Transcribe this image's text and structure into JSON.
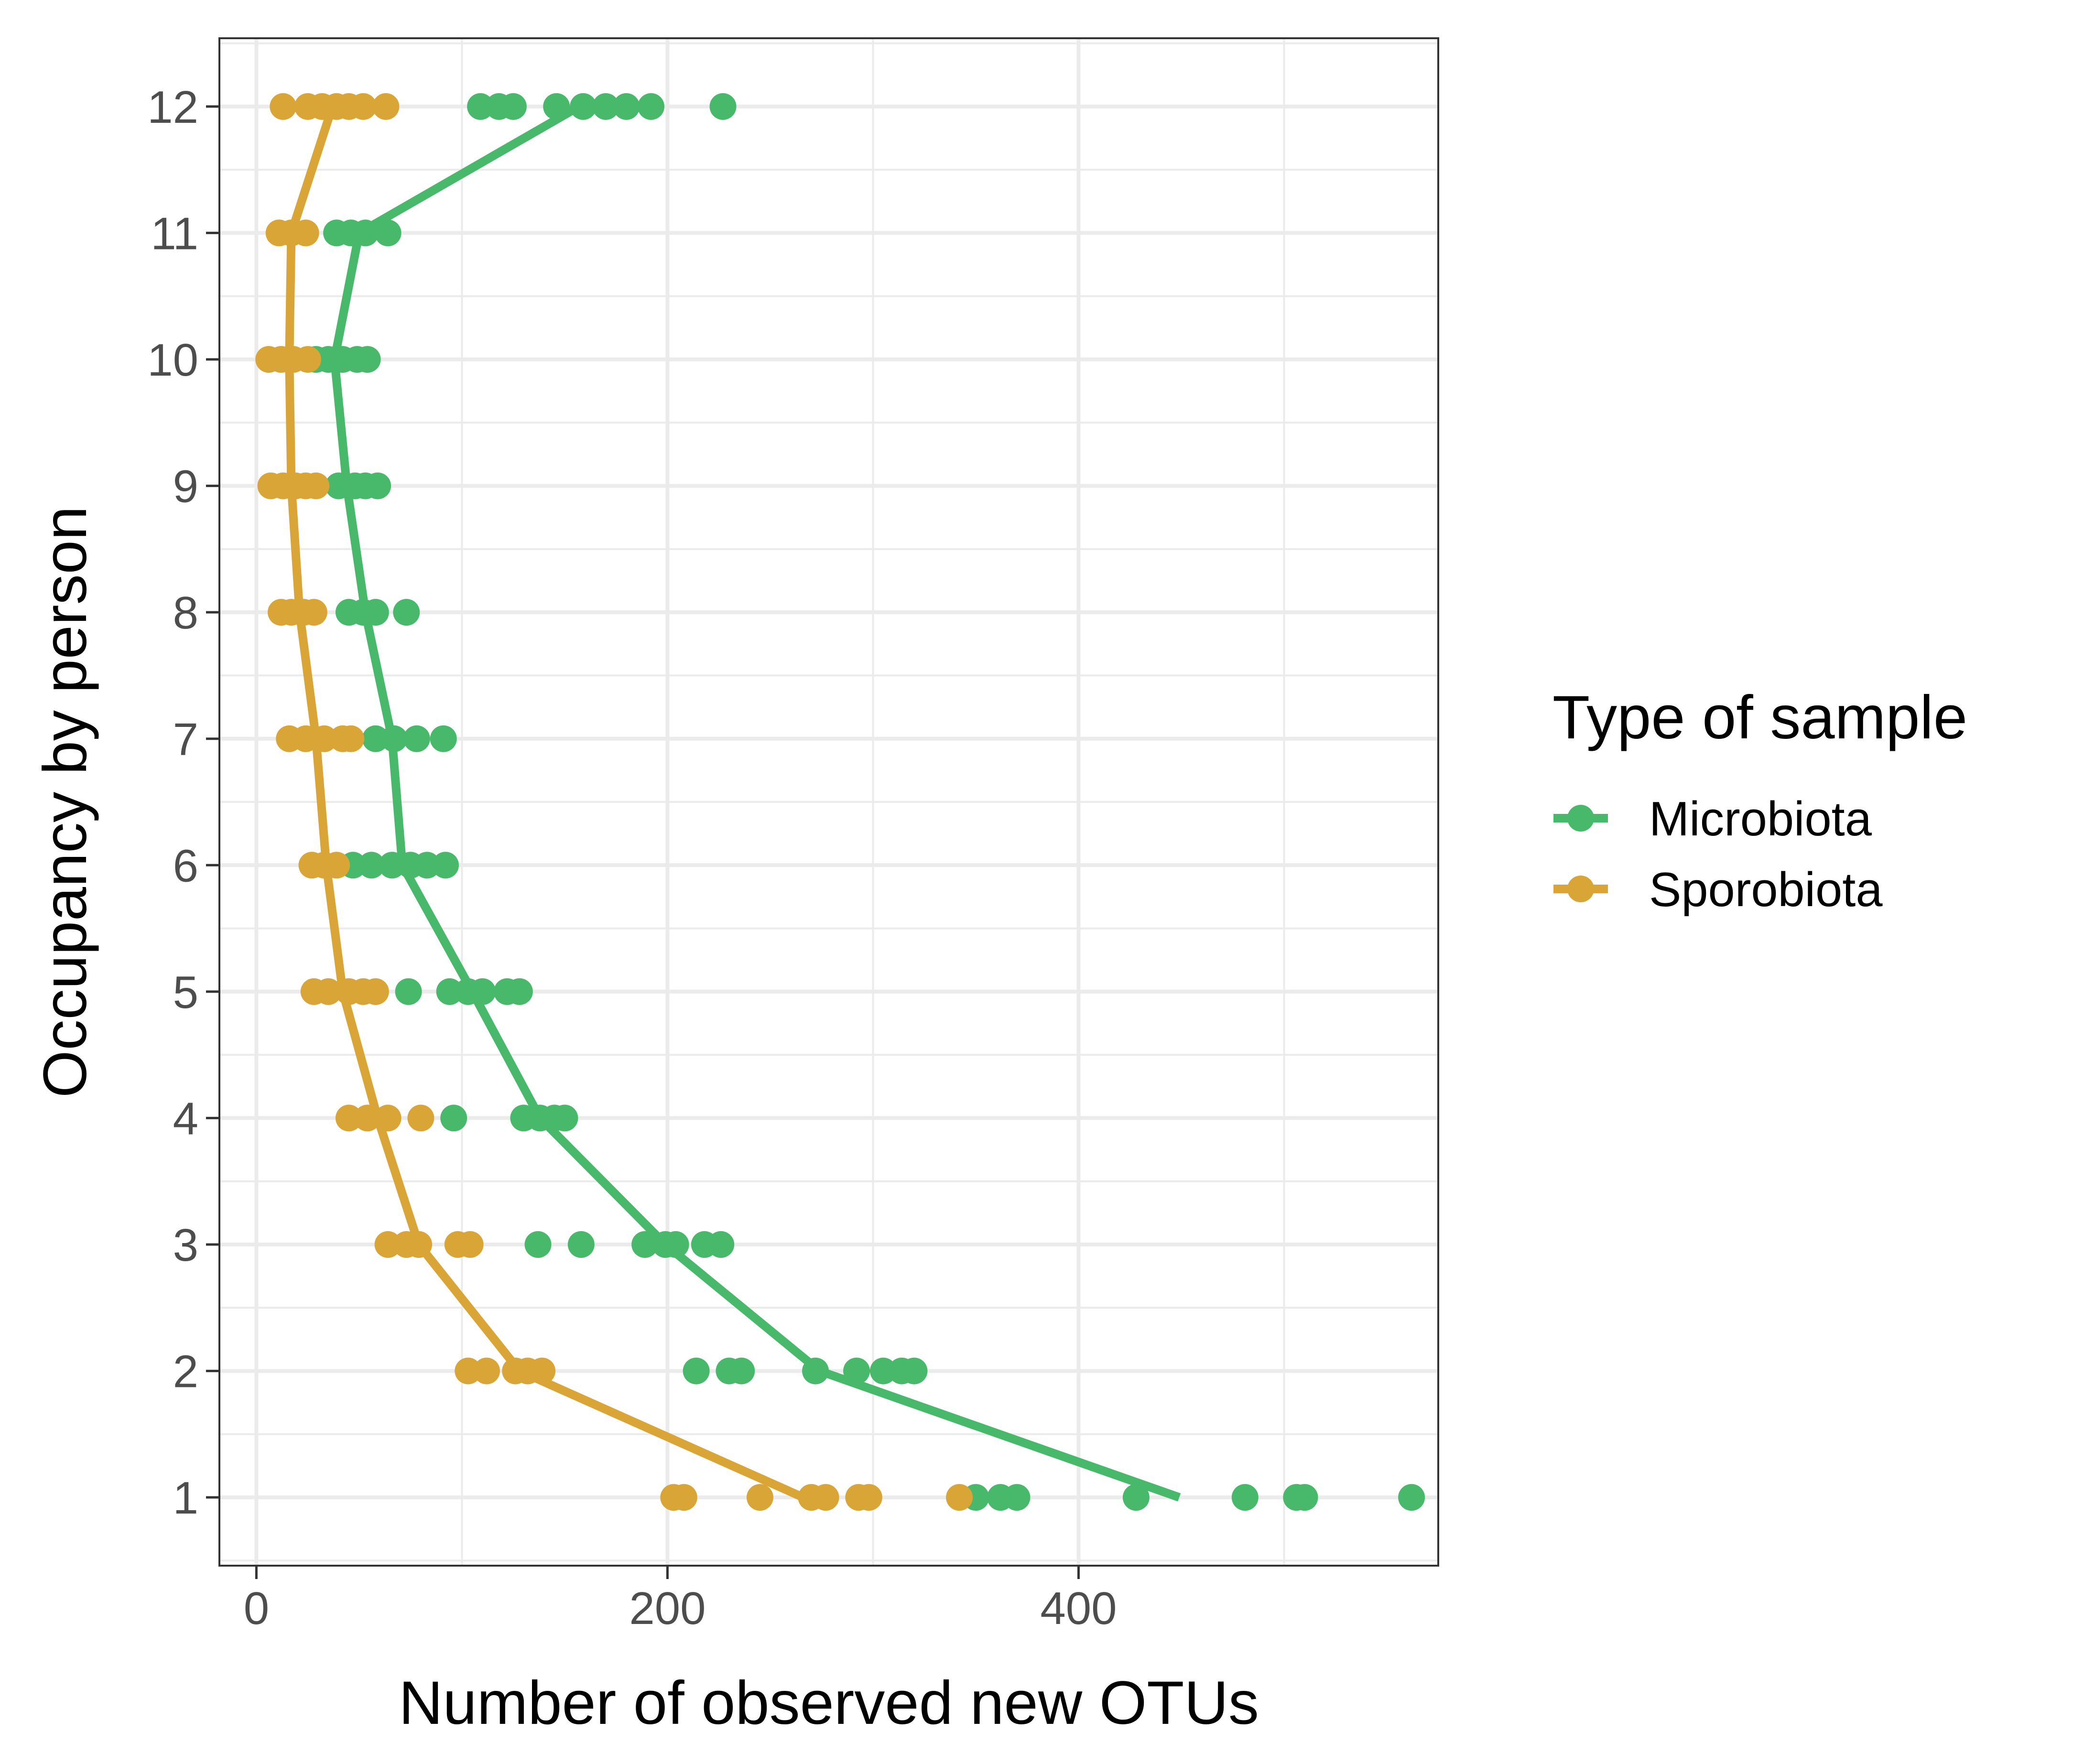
{
  "chart_data": {
    "type": "scatter",
    "xlabel": "Number of observed new OTUs",
    "ylabel": "Occupancy by person",
    "xlim": [
      -18,
      575
    ],
    "ylim": [
      0.46,
      12.54
    ],
    "x_ticks": [
      0,
      200,
      400
    ],
    "y_ticks": [
      1,
      2,
      3,
      4,
      5,
      6,
      7,
      8,
      9,
      10,
      11,
      12
    ],
    "grid": true,
    "legend": {
      "title": "Type of sample",
      "position": "right"
    },
    "series": [
      {
        "name": "Microbiota",
        "color": "#48B86A",
        "points": [
          {
            "x": 350,
            "y": 1
          },
          {
            "x": 362,
            "y": 1
          },
          {
            "x": 370,
            "y": 1
          },
          {
            "x": 428,
            "y": 1
          },
          {
            "x": 481,
            "y": 1
          },
          {
            "x": 506,
            "y": 1
          },
          {
            "x": 510,
            "y": 1
          },
          {
            "x": 562,
            "y": 1
          },
          {
            "x": 214,
            "y": 2
          },
          {
            "x": 230,
            "y": 2
          },
          {
            "x": 236,
            "y": 2
          },
          {
            "x": 272,
            "y": 2
          },
          {
            "x": 292,
            "y": 2
          },
          {
            "x": 305,
            "y": 2
          },
          {
            "x": 314,
            "y": 2
          },
          {
            "x": 320,
            "y": 2
          },
          {
            "x": 137,
            "y": 3
          },
          {
            "x": 158,
            "y": 3
          },
          {
            "x": 189,
            "y": 3
          },
          {
            "x": 199,
            "y": 3
          },
          {
            "x": 204,
            "y": 3
          },
          {
            "x": 218,
            "y": 3
          },
          {
            "x": 226,
            "y": 3
          },
          {
            "x": 96,
            "y": 4
          },
          {
            "x": 130,
            "y": 4
          },
          {
            "x": 138,
            "y": 4
          },
          {
            "x": 145,
            "y": 4
          },
          {
            "x": 150,
            "y": 4
          },
          {
            "x": 74,
            "y": 5
          },
          {
            "x": 94,
            "y": 5
          },
          {
            "x": 103,
            "y": 5
          },
          {
            "x": 110,
            "y": 5
          },
          {
            "x": 122,
            "y": 5
          },
          {
            "x": 128,
            "y": 5
          },
          {
            "x": 47,
            "y": 6
          },
          {
            "x": 56,
            "y": 6
          },
          {
            "x": 66,
            "y": 6
          },
          {
            "x": 75,
            "y": 6
          },
          {
            "x": 83,
            "y": 6
          },
          {
            "x": 92,
            "y": 6
          },
          {
            "x": 58,
            "y": 7
          },
          {
            "x": 67,
            "y": 7
          },
          {
            "x": 78,
            "y": 7
          },
          {
            "x": 91,
            "y": 7
          },
          {
            "x": 45,
            "y": 8
          },
          {
            "x": 52,
            "y": 8
          },
          {
            "x": 58,
            "y": 8
          },
          {
            "x": 73,
            "y": 8
          },
          {
            "x": 40,
            "y": 9
          },
          {
            "x": 48,
            "y": 9
          },
          {
            "x": 53,
            "y": 9
          },
          {
            "x": 59,
            "y": 9
          },
          {
            "x": 29,
            "y": 10
          },
          {
            "x": 35,
            "y": 10
          },
          {
            "x": 42,
            "y": 10
          },
          {
            "x": 49,
            "y": 10
          },
          {
            "x": 54,
            "y": 10
          },
          {
            "x": 39,
            "y": 11
          },
          {
            "x": 46,
            "y": 11
          },
          {
            "x": 53,
            "y": 11
          },
          {
            "x": 64,
            "y": 11
          },
          {
            "x": 109,
            "y": 12
          },
          {
            "x": 118,
            "y": 12
          },
          {
            "x": 125,
            "y": 12
          },
          {
            "x": 146,
            "y": 12
          },
          {
            "x": 159,
            "y": 12
          },
          {
            "x": 170,
            "y": 12
          },
          {
            "x": 180,
            "y": 12
          },
          {
            "x": 192,
            "y": 12
          },
          {
            "x": 227,
            "y": 12
          }
        ],
        "trend": [
          {
            "x": 449,
            "y": 1
          },
          {
            "x": 274,
            "y": 2
          },
          {
            "x": 199,
            "y": 3
          },
          {
            "x": 138,
            "y": 4
          },
          {
            "x": 105,
            "y": 5
          },
          {
            "x": 71,
            "y": 6
          },
          {
            "x": 66,
            "y": 7
          },
          {
            "x": 53,
            "y": 8
          },
          {
            "x": 44,
            "y": 9
          },
          {
            "x": 38,
            "y": 10
          },
          {
            "x": 50,
            "y": 11
          },
          {
            "x": 157,
            "y": 12
          }
        ]
      },
      {
        "name": "Sporobiota",
        "color": "#D9A536",
        "points": [
          {
            "x": 203,
            "y": 1
          },
          {
            "x": 208,
            "y": 1
          },
          {
            "x": 245,
            "y": 1
          },
          {
            "x": 270,
            "y": 1
          },
          {
            "x": 277,
            "y": 1
          },
          {
            "x": 293,
            "y": 1
          },
          {
            "x": 298,
            "y": 1
          },
          {
            "x": 342,
            "y": 1
          },
          {
            "x": 103,
            "y": 2
          },
          {
            "x": 112,
            "y": 2
          },
          {
            "x": 126,
            "y": 2
          },
          {
            "x": 132,
            "y": 2
          },
          {
            "x": 139,
            "y": 2
          },
          {
            "x": 64,
            "y": 3
          },
          {
            "x": 73,
            "y": 3
          },
          {
            "x": 79,
            "y": 3
          },
          {
            "x": 98,
            "y": 3
          },
          {
            "x": 104,
            "y": 3
          },
          {
            "x": 45,
            "y": 4
          },
          {
            "x": 54,
            "y": 4
          },
          {
            "x": 64,
            "y": 4
          },
          {
            "x": 80,
            "y": 4
          },
          {
            "x": 28,
            "y": 5
          },
          {
            "x": 35,
            "y": 5
          },
          {
            "x": 45,
            "y": 5
          },
          {
            "x": 52,
            "y": 5
          },
          {
            "x": 58,
            "y": 5
          },
          {
            "x": 27,
            "y": 6
          },
          {
            "x": 33,
            "y": 6
          },
          {
            "x": 39,
            "y": 6
          },
          {
            "x": 16,
            "y": 7
          },
          {
            "x": 24,
            "y": 7
          },
          {
            "x": 33,
            "y": 7
          },
          {
            "x": 42,
            "y": 7
          },
          {
            "x": 46,
            "y": 7
          },
          {
            "x": 12,
            "y": 8
          },
          {
            "x": 17,
            "y": 8
          },
          {
            "x": 23,
            "y": 8
          },
          {
            "x": 28,
            "y": 8
          },
          {
            "x": 7,
            "y": 9
          },
          {
            "x": 13,
            "y": 9
          },
          {
            "x": 19,
            "y": 9
          },
          {
            "x": 24,
            "y": 9
          },
          {
            "x": 29,
            "y": 9
          },
          {
            "x": 6,
            "y": 10
          },
          {
            "x": 12,
            "y": 10
          },
          {
            "x": 18,
            "y": 10
          },
          {
            "x": 25,
            "y": 10
          },
          {
            "x": 11,
            "y": 11
          },
          {
            "x": 17,
            "y": 11
          },
          {
            "x": 24,
            "y": 11
          },
          {
            "x": 13,
            "y": 12
          },
          {
            "x": 25,
            "y": 12
          },
          {
            "x": 32,
            "y": 12
          },
          {
            "x": 39,
            "y": 12
          },
          {
            "x": 45,
            "y": 12
          },
          {
            "x": 52,
            "y": 12
          },
          {
            "x": 63,
            "y": 12
          }
        ],
        "trend": [
          {
            "x": 266,
            "y": 1
          },
          {
            "x": 128,
            "y": 2
          },
          {
            "x": 79,
            "y": 3
          },
          {
            "x": 59,
            "y": 4
          },
          {
            "x": 42,
            "y": 5
          },
          {
            "x": 34,
            "y": 6
          },
          {
            "x": 29,
            "y": 7
          },
          {
            "x": 21,
            "y": 8
          },
          {
            "x": 17,
            "y": 9
          },
          {
            "x": 16,
            "y": 10
          },
          {
            "x": 17,
            "y": 11
          },
          {
            "x": 37,
            "y": 12
          }
        ]
      }
    ]
  }
}
